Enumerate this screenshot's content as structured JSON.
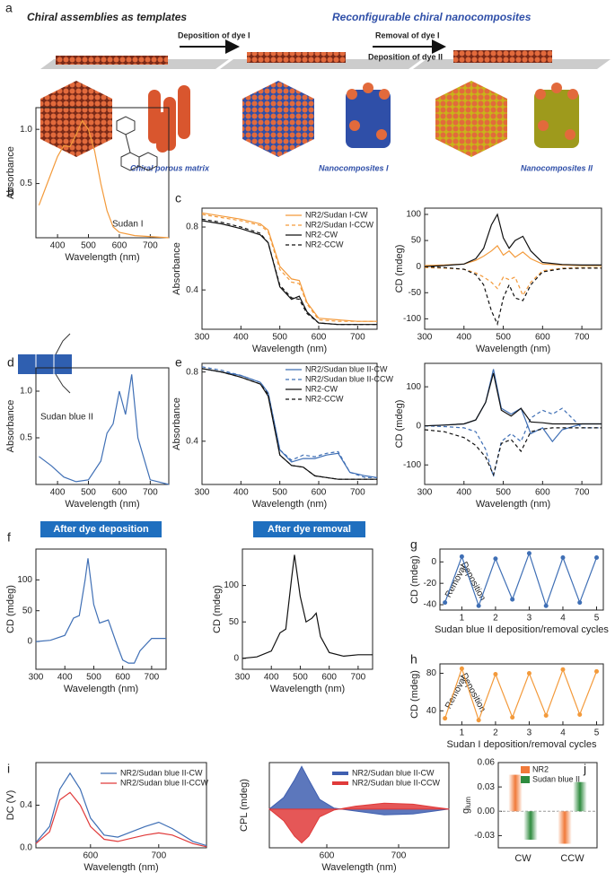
{
  "figure_a": {
    "panel": "a",
    "left_title": "Chiral assemblies as templates",
    "right_title": "Reconfigurable chiral nanocomposites",
    "arrow1": "Deposition of dye I",
    "arrow2_top": "Removal of dye I",
    "arrow2_bottom": "Deposition of dye II",
    "captions": [
      "Chiral porous matrix",
      "Nanocomposites I",
      "Nanocomposites II"
    ]
  },
  "chart_data": [
    {
      "type": "line",
      "panel": "b",
      "xlabel": "Wavelength (nm)",
      "ylabel": "Absorbance",
      "annotations": [
        "Sudan  I"
      ],
      "xlim": [
        330,
        760
      ],
      "xticks": [
        400,
        500,
        600,
        700
      ],
      "ylim": [
        0,
        1.2
      ],
      "yticks": [
        0.5,
        {
          "value": 1,
          "label": "1.0"
        }
      ],
      "x": [
        340,
        360,
        380,
        400,
        420,
        440,
        460,
        480,
        500,
        520,
        540,
        560,
        580,
        600,
        650,
        760
      ],
      "series": [
        {
          "color": "#f39a3b",
          "values": [
            0.3,
            0.45,
            0.6,
            0.75,
            0.85,
            0.84,
            0.95,
            1.08,
            1.0,
            0.8,
            0.5,
            0.25,
            0.1,
            0.05,
            0.02,
            0.0
          ]
        }
      ]
    },
    {
      "type": "line",
      "panel": "c",
      "xlabel": "Wavelength (nm)",
      "ylabel": "Absorbance",
      "xlim": [
        300,
        750
      ],
      "xticks": [
        300,
        400,
        500,
        600,
        700
      ],
      "ylim": [
        0.15,
        0.92
      ],
      "yticks": [
        0.4,
        0.8
      ],
      "x": [
        300,
        350,
        400,
        450,
        470,
        500,
        530,
        550,
        570,
        600,
        650,
        700,
        750
      ],
      "series": [
        {
          "name": "NR2/Sudan I-CW",
          "color": "#f39a3b",
          "dash": false,
          "values": [
            0.89,
            0.87,
            0.85,
            0.82,
            0.78,
            0.55,
            0.47,
            0.46,
            0.32,
            0.22,
            0.21,
            0.2,
            0.2
          ]
        },
        {
          "name": "NR2/Sudan I-CCW",
          "color": "#f39a3b",
          "dash": true,
          "values": [
            0.88,
            0.86,
            0.84,
            0.81,
            0.77,
            0.53,
            0.45,
            0.44,
            0.31,
            0.21,
            0.2,
            0.2,
            0.2
          ]
        },
        {
          "name": "NR2-CW",
          "color": "#111111",
          "dash": false,
          "values": [
            0.84,
            0.82,
            0.79,
            0.75,
            0.7,
            0.42,
            0.34,
            0.36,
            0.26,
            0.19,
            0.18,
            0.18,
            0.18
          ]
        },
        {
          "name": "NR2-CCW",
          "color": "#111111",
          "dash": true,
          "values": [
            0.85,
            0.83,
            0.8,
            0.76,
            0.7,
            0.43,
            0.35,
            0.34,
            0.25,
            0.19,
            0.18,
            0.18,
            0.18
          ]
        }
      ]
    },
    {
      "type": "line",
      "xlabel": "Wavelength (nm)",
      "ylabel": "CD (mdeg)",
      "xlim": [
        300,
        750
      ],
      "xticks": [
        300,
        400,
        500,
        600,
        700
      ],
      "ylim": [
        -120,
        112
      ],
      "yticks": [
        -100,
        -50,
        0,
        50,
        100
      ],
      "x": [
        300,
        350,
        400,
        430,
        450,
        470,
        485,
        500,
        515,
        530,
        550,
        570,
        600,
        650,
        700,
        750
      ],
      "series": [
        {
          "color": "#f39a3b",
          "dash": false,
          "values": [
            2,
            3,
            5,
            12,
            20,
            30,
            40,
            22,
            30,
            18,
            28,
            15,
            5,
            3,
            2,
            2
          ]
        },
        {
          "color": "#f39a3b",
          "dash": true,
          "values": [
            -2,
            -3,
            -5,
            -12,
            -20,
            -30,
            -42,
            -20,
            -25,
            -20,
            -55,
            -30,
            -8,
            -3,
            -2,
            -2
          ]
        },
        {
          "color": "#111111",
          "dash": false,
          "values": [
            0,
            2,
            5,
            15,
            35,
            80,
            100,
            55,
            35,
            50,
            58,
            30,
            8,
            4,
            3,
            3
          ]
        },
        {
          "color": "#111111",
          "dash": true,
          "values": [
            0,
            -2,
            -5,
            -15,
            -35,
            -85,
            -110,
            -60,
            -35,
            -60,
            -65,
            -35,
            -10,
            -4,
            -3,
            -3
          ]
        }
      ]
    },
    {
      "type": "line",
      "panel": "d",
      "xlabel": "Wavelength (nm)",
      "ylabel": "Absorbance",
      "annotations": [
        "Sudan blue II"
      ],
      "xlim": [
        330,
        760
      ],
      "xticks": [
        400,
        500,
        600,
        700
      ],
      "ylim": [
        0,
        1.25
      ],
      "yticks": [
        0.5,
        {
          "value": 1,
          "label": "1.0"
        }
      ],
      "x": [
        340,
        380,
        420,
        460,
        500,
        540,
        560,
        580,
        600,
        620,
        640,
        660,
        700,
        760
      ],
      "series": [
        {
          "color": "#3f6fb5",
          "values": [
            0.3,
            0.2,
            0.08,
            0.03,
            0.05,
            0.25,
            0.55,
            0.65,
            1.0,
            0.75,
            1.18,
            0.5,
            0.05,
            0.0
          ]
        }
      ]
    },
    {
      "type": "line",
      "panel": "e",
      "xlabel": "Wavelength (nm)",
      "ylabel": "Absorbance",
      "xlim": [
        300,
        750
      ],
      "xticks": [
        300,
        400,
        500,
        600,
        700
      ],
      "ylim": [
        0.15,
        0.85
      ],
      "yticks": [
        0.4,
        0.8
      ],
      "x": [
        300,
        350,
        400,
        450,
        470,
        500,
        530,
        560,
        590,
        620,
        650,
        680,
        720,
        750
      ],
      "series": [
        {
          "name": "NR2/Sudan blue II-CW",
          "color": "#3f6fb5",
          "dash": false,
          "values": [
            0.82,
            0.8,
            0.78,
            0.74,
            0.68,
            0.35,
            0.28,
            0.3,
            0.3,
            0.32,
            0.33,
            0.22,
            0.2,
            0.19
          ]
        },
        {
          "name": "NR2/Sudan blue II-CCW",
          "color": "#3f6fb5",
          "dash": true,
          "values": [
            0.83,
            0.81,
            0.78,
            0.74,
            0.68,
            0.35,
            0.29,
            0.32,
            0.31,
            0.33,
            0.34,
            0.22,
            0.19,
            0.19
          ]
        },
        {
          "name": "NR2-CW",
          "color": "#111111",
          "dash": false,
          "values": [
            0.82,
            0.8,
            0.77,
            0.73,
            0.66,
            0.32,
            0.26,
            0.25,
            0.2,
            0.19,
            0.18,
            0.18,
            0.18,
            0.18
          ]
        },
        {
          "name": "NR2-CCW",
          "color": "#111111",
          "dash": true,
          "values": [
            0.82,
            0.8,
            0.77,
            0.73,
            0.67,
            0.32,
            0.26,
            0.25,
            0.2,
            0.19,
            0.18,
            0.18,
            0.18,
            0.18
          ]
        }
      ]
    },
    {
      "type": "line",
      "xlabel": "Wavelength (nm)",
      "ylabel": "CD (mdeg)",
      "xlim": [
        300,
        750
      ],
      "xticks": [
        300,
        400,
        500,
        600,
        700
      ],
      "ylim": [
        -150,
        160
      ],
      "yticks": [
        -100,
        0,
        100
      ],
      "x": [
        300,
        350,
        400,
        430,
        455,
        475,
        495,
        520,
        545,
        570,
        600,
        625,
        650,
        700,
        750
      ],
      "series": [
        {
          "color": "#3f6fb5",
          "dash": false,
          "values": [
            0,
            2,
            5,
            15,
            60,
            145,
            45,
            30,
            45,
            -20,
            -5,
            -40,
            -10,
            5,
            5
          ]
        },
        {
          "color": "#3f6fb5",
          "dash": true,
          "values": [
            0,
            -2,
            -5,
            -15,
            -60,
            -130,
            -40,
            -20,
            -40,
            20,
            40,
            30,
            45,
            -5,
            -5
          ]
        },
        {
          "color": "#111111",
          "dash": false,
          "values": [
            0,
            2,
            5,
            15,
            60,
            135,
            40,
            25,
            45,
            10,
            8,
            5,
            5,
            5,
            5
          ]
        },
        {
          "color": "#111111",
          "dash": true,
          "values": [
            -10,
            -15,
            -30,
            -50,
            -80,
            -125,
            -45,
            -35,
            -65,
            -15,
            -8,
            -5,
            -5,
            -5,
            -5
          ]
        }
      ]
    },
    {
      "type": "line",
      "panel": "f",
      "title": "After dye deposition",
      "xlabel": "Wavelength (nm)",
      "ylabel": "CD (mdeg)",
      "xlim": [
        300,
        750
      ],
      "xticks": [
        300,
        400,
        500,
        600,
        700
      ],
      "ylim": [
        -45,
        150
      ],
      "yticks": [
        0,
        50,
        100
      ],
      "x": [
        300,
        350,
        400,
        430,
        450,
        470,
        480,
        500,
        520,
        550,
        580,
        600,
        620,
        640,
        660,
        700,
        750
      ],
      "series": [
        {
          "color": "#3f6fb5",
          "values": [
            0,
            2,
            10,
            38,
            42,
            100,
            135,
            60,
            30,
            35,
            -5,
            -30,
            -35,
            -35,
            -15,
            5,
            5
          ]
        }
      ]
    },
    {
      "type": "line",
      "title": "After dye removal",
      "xlabel": "Wavelength (nm)",
      "ylabel": "CD (mdeg)",
      "xlim": [
        300,
        750
      ],
      "xticks": [
        300,
        400,
        500,
        600,
        700
      ],
      "ylim": [
        -15,
        150
      ],
      "yticks": [
        0,
        50,
        100
      ],
      "x": [
        300,
        350,
        400,
        430,
        450,
        470,
        480,
        500,
        520,
        540,
        555,
        570,
        600,
        650,
        700,
        750
      ],
      "series": [
        {
          "color": "#111111",
          "values": [
            0,
            2,
            10,
            35,
            40,
            110,
            142,
            85,
            50,
            55,
            62,
            30,
            8,
            3,
            5,
            5
          ]
        }
      ]
    },
    {
      "type": "line",
      "panel": "g",
      "markers": true,
      "xlabel": "Sudan blue II deposition/removal cycles",
      "ylabel": "CD (mdeg)",
      "annotations": [
        "Removal",
        "Deposition"
      ],
      "xlim": [
        0.35,
        5.2
      ],
      "xticks": [
        1,
        2,
        3,
        4,
        5
      ],
      "ylim": [
        -45,
        12
      ],
      "yticks": [
        -40,
        -20,
        0
      ],
      "x": [
        0.5,
        1,
        1.5,
        2,
        2.5,
        3,
        3.5,
        4,
        4.5,
        5
      ],
      "series": [
        {
          "color": "#3f6fb5",
          "values": [
            -38,
            5,
            -41,
            3,
            -35,
            8,
            -41,
            4,
            -38,
            4
          ]
        }
      ]
    },
    {
      "type": "line",
      "panel": "h",
      "markers": true,
      "xlabel": "Sudan I deposition/removal cycles",
      "ylabel": "CD (mdeg)",
      "annotations": [
        "Removal",
        "Deposition"
      ],
      "xlim": [
        0.35,
        5.2
      ],
      "xticks": [
        1,
        2,
        3,
        4,
        5
      ],
      "ylim": [
        25,
        90
      ],
      "yticks": [
        40,
        80
      ],
      "x": [
        0.5,
        1,
        1.5,
        2,
        2.5,
        3,
        3.5,
        4,
        4.5,
        5
      ],
      "series": [
        {
          "color": "#f39a3b",
          "values": [
            32,
            85,
            30,
            79,
            33,
            80,
            35,
            84,
            36,
            82
          ]
        }
      ]
    },
    {
      "type": "line",
      "panel": "i",
      "xlabel": "Wavelength (nm)",
      "ylabel": "DC (V)",
      "xlim": [
        520,
        770
      ],
      "xticks": [
        600,
        700
      ],
      "ylim": [
        0,
        0.8
      ],
      "yticks": [
        {
          "value": 0,
          "label": "0.0"
        },
        0.4
      ],
      "x": [
        520,
        540,
        555,
        570,
        585,
        600,
        620,
        640,
        660,
        680,
        700,
        720,
        750,
        770
      ],
      "series": [
        {
          "name": "NR2/Sudan blue II-CW",
          "color": "#3f6fb5",
          "values": [
            0.05,
            0.2,
            0.55,
            0.7,
            0.55,
            0.28,
            0.12,
            0.1,
            0.15,
            0.2,
            0.24,
            0.18,
            0.06,
            0.02
          ]
        },
        {
          "name": "NR2/Sudan blue II-CCW",
          "color": "#e03a3a",
          "values": [
            0.04,
            0.15,
            0.45,
            0.52,
            0.4,
            0.2,
            0.08,
            0.06,
            0.09,
            0.12,
            0.14,
            0.12,
            0.04,
            0.01
          ]
        }
      ]
    },
    {
      "type": "area",
      "xlabel": "Wavelength (nm)",
      "ylabel": "CPL (mdeg)",
      "xlim": [
        520,
        770
      ],
      "xticks": [
        600,
        700
      ],
      "ylim": [
        -400,
        480
      ],
      "yticks": [],
      "x": [
        520,
        540,
        555,
        565,
        575,
        590,
        610,
        640,
        680,
        720,
        750,
        770
      ],
      "series": [
        {
          "name": "NR2/Sudan blue II-CW",
          "color": "#3f5fb0",
          "values": [
            0,
            120,
            300,
            440,
            300,
            100,
            10,
            -20,
            -60,
            -50,
            -20,
            0
          ]
        },
        {
          "name": "NR2/Sudan blue II-CCW",
          "color": "#e03a3a",
          "values": [
            0,
            -120,
            -280,
            -350,
            -280,
            -80,
            -10,
            30,
            60,
            50,
            20,
            0
          ]
        }
      ]
    },
    {
      "type": "bar",
      "panel": "j",
      "ylabel": "g",
      "ylabel_sub": "lum",
      "categories": [
        "CW",
        "CCW"
      ],
      "ylim": [
        -0.045,
        0.06
      ],
      "yticks": [
        -0.03,
        {
          "value": 0,
          "label": "0.00"
        },
        0.03,
        0.06
      ],
      "series": [
        {
          "name": "NR2",
          "color": "#f07a3a",
          "values": [
            0.045,
            -0.04
          ]
        },
        {
          "name": "Sudan blue II",
          "color": "#2e8b3e",
          "values": [
            -0.035,
            0.036
          ]
        }
      ]
    }
  ]
}
